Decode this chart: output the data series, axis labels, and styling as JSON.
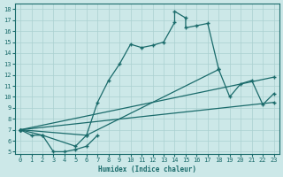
{
  "xlabel": "Humidex (Indice chaleur)",
  "bg_color": "#cce8e8",
  "line_color": "#1a6b6b",
  "grid_color": "#aad0d0",
  "xlim": [
    -0.5,
    23.5
  ],
  "ylim": [
    4.8,
    18.5
  ],
  "yticks": [
    5,
    6,
    7,
    8,
    9,
    10,
    11,
    12,
    13,
    14,
    15,
    16,
    17,
    18
  ],
  "xticks": [
    0,
    1,
    2,
    3,
    4,
    5,
    6,
    7,
    8,
    9,
    10,
    11,
    12,
    13,
    14,
    15,
    16,
    17,
    18,
    19,
    20,
    21,
    22,
    23
  ],
  "curve_upper_x": [
    0,
    2,
    5,
    6,
    7,
    8,
    9,
    10,
    11,
    12,
    13,
    14,
    14,
    15,
    15,
    16,
    17,
    18
  ],
  "curve_upper_y": [
    7.0,
    6.5,
    5.5,
    6.5,
    9.5,
    11.5,
    13.0,
    14.8,
    14.5,
    14.7,
    15.0,
    16.8,
    17.8,
    17.2,
    16.3,
    16.5,
    16.7,
    12.5
  ],
  "curve_lower_x": [
    0,
    1,
    2,
    3,
    4,
    5,
    6,
    7
  ],
  "curve_lower_y": [
    7.0,
    6.5,
    6.5,
    5.0,
    5.0,
    5.2,
    5.5,
    6.5
  ],
  "curve_right_x": [
    0,
    6,
    18,
    19,
    20,
    21,
    22,
    23
  ],
  "curve_right_y": [
    7.0,
    6.5,
    12.5,
    10.0,
    11.2,
    11.5,
    9.3,
    10.3
  ],
  "line1_x": [
    0,
    23
  ],
  "line1_y": [
    7.0,
    11.8
  ],
  "line2_x": [
    0,
    23
  ],
  "line2_y": [
    7.0,
    9.5
  ]
}
